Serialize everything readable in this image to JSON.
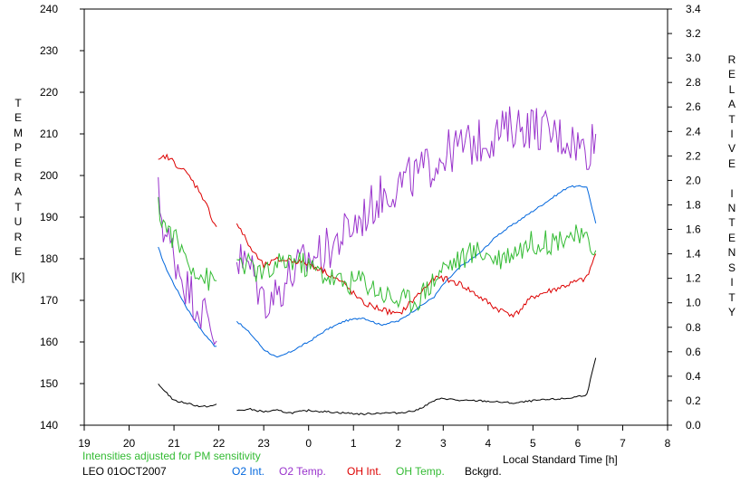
{
  "chart_data": {
    "type": "line",
    "title": "",
    "xlabel": "Local Standard Time [h]",
    "ylabel_left": "TEMPERATURE",
    "ylabel_left_unit": "[K]",
    "ylabel_right": "RELATIVE INTENSITY",
    "x_ticks": [
      "19",
      "20",
      "21",
      "22",
      "23",
      "0",
      "1",
      "2",
      "3",
      "4",
      "5",
      "6",
      "7",
      "8"
    ],
    "xlim": [
      19,
      32
    ],
    "ylim_left": [
      140,
      240
    ],
    "ylim_right": [
      0.0,
      3.4
    ],
    "y_ticks_left": [
      "140",
      "150",
      "160",
      "170",
      "180",
      "190",
      "200",
      "210",
      "220",
      "230",
      "240"
    ],
    "y_ticks_right": [
      "0.0",
      "0.2",
      "0.4",
      "0.6",
      "0.8",
      "1.0",
      "1.2",
      "1.4",
      "1.6",
      "1.8",
      "2.0",
      "2.2",
      "2.4",
      "2.6",
      "2.8",
      "3.0",
      "3.2",
      "3.4"
    ],
    "grid": false,
    "note": "Intensities adjusted for PM sensitivity",
    "station": "LEO 01OCT2007",
    "series": [
      {
        "name": "O2 Int.",
        "axis": "right",
        "color": "#0066dd",
        "x": [
          20.65,
          20.8,
          21.0,
          21.3,
          21.6,
          21.9,
          22.0,
          22.4,
          22.7,
          23.0,
          23.3,
          23.6,
          24.0,
          24.4,
          24.8,
          25.2,
          25.6,
          26.0,
          26.4,
          26.8,
          27.0,
          27.4,
          27.8,
          28.2,
          28.6,
          29.0,
          29.4,
          29.8,
          30.2,
          30.4
        ],
        "y": [
          1.45,
          1.3,
          1.15,
          0.95,
          0.78,
          0.65,
          0.65,
          0.85,
          0.75,
          0.62,
          0.55,
          0.6,
          0.68,
          0.78,
          0.85,
          0.88,
          0.82,
          0.85,
          0.95,
          1.05,
          1.15,
          1.3,
          1.4,
          1.55,
          1.65,
          1.75,
          1.85,
          1.95,
          1.95,
          1.65
        ]
      },
      {
        "name": "O2 Temp.",
        "axis": "left",
        "color": "#9933cc",
        "x": [
          20.65,
          20.8,
          21.0,
          21.3,
          21.6,
          21.9,
          22.0,
          22.4,
          22.7,
          23.0,
          23.3,
          23.6,
          24.0,
          24.4,
          24.8,
          25.2,
          25.6,
          26.0,
          26.4,
          26.8,
          27.0,
          27.4,
          27.8,
          28.2,
          28.6,
          29.0,
          29.4,
          29.8,
          30.2,
          30.4
        ],
        "y": [
          195,
          186,
          181,
          173,
          168,
          162,
          163,
          180,
          178,
          170,
          172,
          176,
          180,
          182,
          186,
          190,
          195,
          198,
          200,
          203,
          205,
          207,
          208,
          210,
          212,
          212,
          210,
          209,
          206,
          210
        ]
      },
      {
        "name": "OH Int.",
        "axis": "right",
        "color": "#dd0000",
        "x": [
          20.65,
          20.8,
          21.0,
          21.3,
          21.6,
          21.9,
          22.0,
          22.4,
          22.7,
          23.0,
          23.3,
          23.6,
          24.0,
          24.4,
          24.8,
          25.2,
          25.6,
          26.0,
          26.4,
          26.8,
          27.0,
          27.4,
          27.8,
          28.2,
          28.6,
          29.0,
          29.4,
          29.8,
          30.2,
          30.4
        ],
        "y": [
          2.15,
          2.2,
          2.15,
          2.05,
          1.9,
          1.65,
          1.6,
          1.65,
          1.45,
          1.3,
          1.35,
          1.35,
          1.32,
          1.25,
          1.15,
          1.0,
          0.95,
          0.9,
          1.05,
          1.2,
          1.2,
          1.15,
          1.05,
          0.95,
          0.9,
          1.05,
          1.1,
          1.15,
          1.2,
          1.4
        ]
      },
      {
        "name": "OH Temp.",
        "axis": "left",
        "color": "#33bb33",
        "x": [
          20.65,
          20.8,
          21.0,
          21.3,
          21.6,
          21.9,
          22.0,
          22.4,
          22.7,
          23.0,
          23.3,
          23.6,
          24.0,
          24.4,
          24.8,
          25.2,
          25.6,
          26.0,
          26.4,
          26.8,
          27.0,
          27.4,
          27.8,
          28.2,
          28.6,
          29.0,
          29.4,
          29.8,
          30.2,
          30.4
        ],
        "y": [
          192,
          188,
          185,
          180,
          176,
          174,
          175,
          180,
          178,
          176,
          178,
          180,
          178,
          176,
          174,
          175,
          172,
          170,
          170,
          175,
          178,
          180,
          182,
          180,
          182,
          184,
          184,
          186,
          184,
          182
        ]
      },
      {
        "name": "Bckgrd.",
        "axis": "right",
        "color": "#000000",
        "x": [
          20.65,
          20.8,
          21.0,
          21.3,
          21.6,
          21.9,
          22.0,
          22.4,
          22.7,
          23.0,
          23.3,
          23.6,
          24.0,
          24.4,
          24.8,
          25.2,
          25.6,
          26.0,
          26.4,
          26.8,
          27.0,
          27.4,
          27.8,
          28.2,
          28.6,
          29.0,
          29.4,
          29.8,
          30.2,
          30.4
        ],
        "y": [
          0.33,
          0.28,
          0.2,
          0.18,
          0.15,
          0.16,
          0.18,
          0.12,
          0.13,
          0.11,
          0.12,
          0.1,
          0.12,
          0.11,
          0.1,
          0.09,
          0.1,
          0.1,
          0.12,
          0.2,
          0.22,
          0.2,
          0.2,
          0.19,
          0.18,
          0.2,
          0.21,
          0.22,
          0.25,
          0.55
        ]
      }
    ]
  }
}
